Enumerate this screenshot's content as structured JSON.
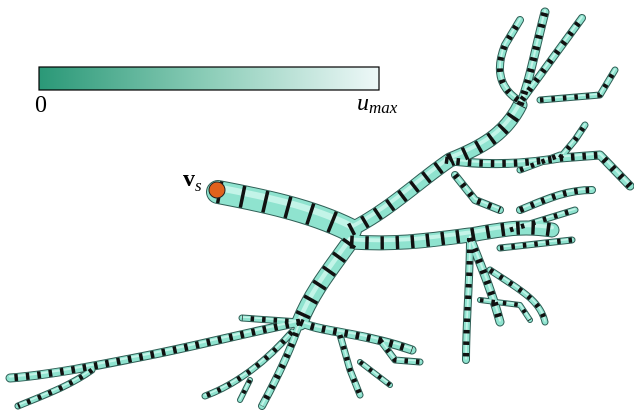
{
  "colorbar": {
    "min_label": "0",
    "max_label": {
      "base": "u",
      "subscript": "max"
    }
  },
  "source_label": {
    "base": "v",
    "subscript": "s"
  }
}
